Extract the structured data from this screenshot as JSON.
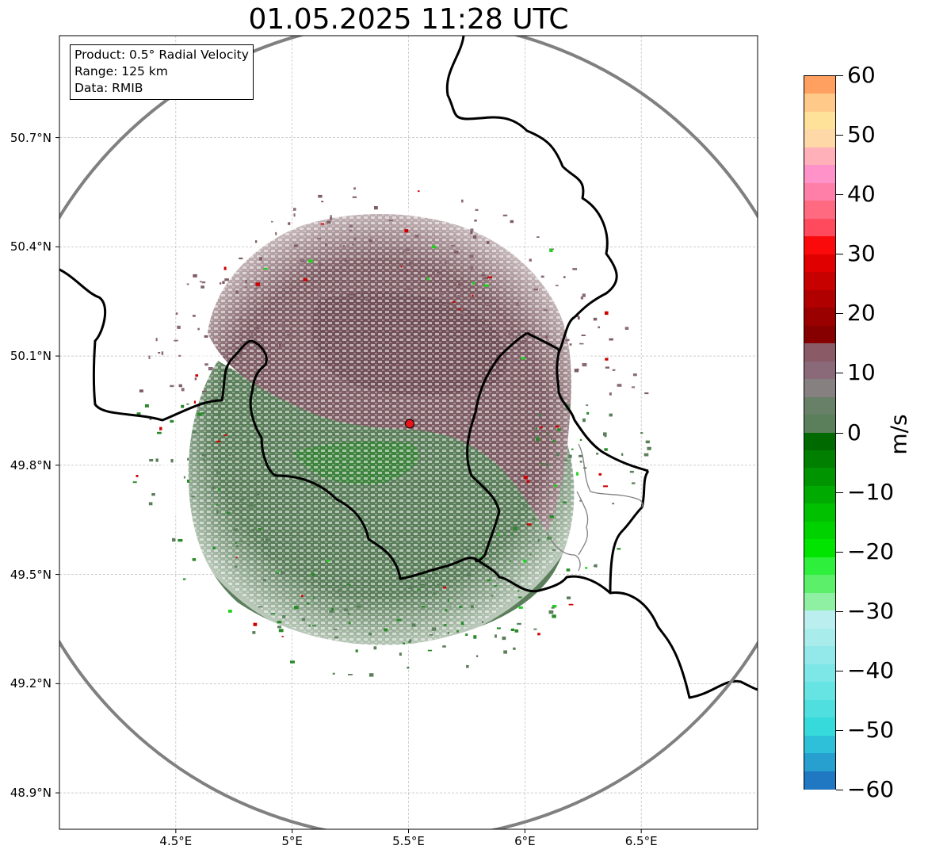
{
  "title": "01.05.2025 11:28 UTC",
  "info_box": {
    "product": "Product: 0.5° Radial Velocity",
    "range": "Range: 125 km",
    "source": "Data: RMIB"
  },
  "map": {
    "lat_range": [
      48.8,
      50.98
    ],
    "lon_range": [
      4.0,
      7.0
    ],
    "grid": true,
    "lat_ticks": [
      {
        "value": 50.7,
        "label": "50.7°N"
      },
      {
        "value": 50.4,
        "label": "50.4°N"
      },
      {
        "value": 50.1,
        "label": "50.1°N"
      },
      {
        "value": 49.8,
        "label": "49.8°N"
      },
      {
        "value": 49.5,
        "label": "49.5°N"
      },
      {
        "value": 49.2,
        "label": "49.2°N"
      },
      {
        "value": 48.9,
        "label": "48.9°N"
      }
    ],
    "lon_ticks": [
      {
        "value": 4.5,
        "label": "4.5°E"
      },
      {
        "value": 5.0,
        "label": "5°E"
      },
      {
        "value": 5.5,
        "label": "5.5°E"
      },
      {
        "value": 6.0,
        "label": "6°E"
      },
      {
        "value": 6.5,
        "label": "6.5°E"
      }
    ],
    "radar_site": {
      "lon": 5.505,
      "lat": 49.914,
      "color": "#e8141c"
    },
    "range_ring_color": "#808080"
  },
  "colorbar": {
    "unit": "m/s",
    "min": -60,
    "max": 60,
    "ticks": [
      {
        "value": 60,
        "label": "60"
      },
      {
        "value": 50,
        "label": "50"
      },
      {
        "value": 40,
        "label": "40"
      },
      {
        "value": 30,
        "label": "30"
      },
      {
        "value": 20,
        "label": "20"
      },
      {
        "value": 10,
        "label": "10"
      },
      {
        "value": 0,
        "label": "0"
      },
      {
        "value": -10,
        "label": "−10"
      },
      {
        "value": -20,
        "label": "−20"
      },
      {
        "value": -30,
        "label": "−30"
      },
      {
        "value": -40,
        "label": "−40"
      },
      {
        "value": -50,
        "label": "−50"
      },
      {
        "value": -60,
        "label": "−60"
      }
    ],
    "colors": [
      "#1f78c1",
      "#279fcf",
      "#2ec0d8",
      "#36dada",
      "#4fdfdf",
      "#66e3e3",
      "#7de6e6",
      "#93e9e9",
      "#a8ecec",
      "#bbeeee",
      "#8ff0a4",
      "#5cf06a",
      "#2ef03c",
      "#00e400",
      "#00d200",
      "#00c000",
      "#00aa00",
      "#009400",
      "#007f00",
      "#006a00",
      "#5a7f5a",
      "#678067",
      "#868080",
      "#8a6a78",
      "#8a5a66",
      "#870000",
      "#9b0000",
      "#b00000",
      "#c70000",
      "#e00000",
      "#fa0a0a",
      "#ff4a5e",
      "#ff6a80",
      "#ff7fa8",
      "#ff92c8",
      "#ffb0b8",
      "#ffd8a8",
      "#ffe29a",
      "#ffc98a",
      "#ffa060"
    ]
  }
}
